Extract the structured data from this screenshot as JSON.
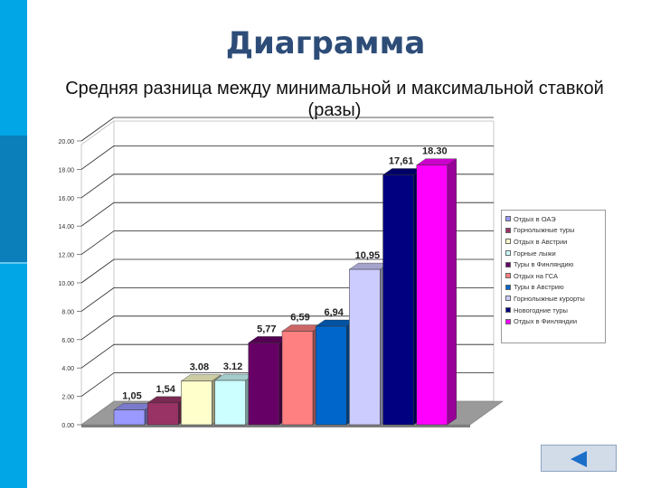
{
  "slide": {
    "title": "Диаграмма"
  },
  "colors": {
    "accent_strip": "#00a6e6",
    "accent_block": "#0b7fb9",
    "title_color": "#2d4d78"
  },
  "chart_data": {
    "type": "bar",
    "title": "Средняя разница между минимальной и максимальной ставкой (разы)",
    "xlabel": "",
    "ylabel": "",
    "ylim": [
      0,
      20
    ],
    "yticks": [
      "0.00",
      "2.00",
      "4.00",
      "6.00",
      "8.00",
      "10.00",
      "12.00",
      "14.00",
      "16.00",
      "18.00",
      "20.00"
    ],
    "grid": true,
    "legend_position": "right",
    "series": [
      {
        "name": "Отдых в ОАЭ",
        "value": 1.05,
        "label": "1,05",
        "color": "#9999ff"
      },
      {
        "name": "Горнолыжные туры",
        "value": 1.54,
        "label": "1,54",
        "color": "#993366"
      },
      {
        "name": "Отдых в Австрии",
        "value": 3.08,
        "label": "3.08",
        "color": "#ffffcc"
      },
      {
        "name": "Горные лыжи",
        "value": 3.12,
        "label": "3.12",
        "color": "#ccffff"
      },
      {
        "name": "Туры в Финляндию",
        "value": 5.77,
        "label": "5,77",
        "color": "#660066"
      },
      {
        "name": "Отдых на ГСА",
        "value": 6.59,
        "label": "6,59",
        "color": "#ff8080"
      },
      {
        "name": "Туры в Австрию",
        "value": 6.94,
        "label": "6,94",
        "color": "#0066cc"
      },
      {
        "name": "Горнолыжные курорты",
        "value": 10.95,
        "label": "10,95",
        "color": "#ccccff"
      },
      {
        "name": "Новогодние туры",
        "value": 17.61,
        "label": "17,61",
        "color": "#000080"
      },
      {
        "name": "Отдых в Финляндии",
        "value": 18.3,
        "label": "18.30",
        "color": "#ff00ff"
      }
    ]
  },
  "nav": {
    "back_icon": "left-arrow-icon"
  }
}
